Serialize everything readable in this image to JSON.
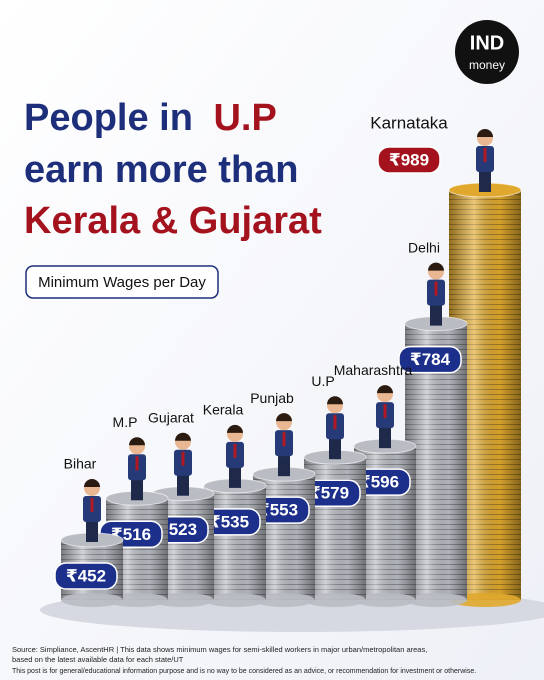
{
  "brand": [
    "IND",
    "money"
  ],
  "chart_data": {
    "type": "bar",
    "title_parts": [
      "People in",
      "U.P",
      "earn more than",
      "Kerala & Gujarat"
    ],
    "subtitle": "Minimum Wages per Day",
    "categories": [
      "Bihar",
      "M.P",
      "Gujarat",
      "Kerala",
      "Punjab",
      "U.P",
      "Maharashtra",
      "Delhi",
      "Karnataka"
    ],
    "values": [
      452,
      516,
      523,
      535,
      553,
      579,
      596,
      784,
      989
    ],
    "value_labels": [
      "₹452",
      "₹516",
      "₹523",
      "₹535",
      "₹553",
      "₹579",
      "₹596",
      "₹784",
      "₹989"
    ],
    "colors": [
      "#b9bcc3",
      "#b9bcc3",
      "#b9bcc3",
      "#b9bcc3",
      "#b9bcc3",
      "#b9bcc3",
      "#b9bcc3",
      "#b9bcc3",
      "#e0a92e"
    ],
    "label_colors": [
      "#1c2f8a",
      "#1c2f8a",
      "#1c2f8a",
      "#1c2f8a",
      "#1c2f8a",
      "#1c2f8a",
      "#1c2f8a",
      "#1c2f8a",
      "#a3121d"
    ]
  },
  "source": [
    "Source: Simpliance, AscentHR | This data shows minimum wages for semi-skilled workers in major urban/metropolitan areas,",
    "based on the latest available data for each state/UT",
    "This post is for general/educational information purpose and is no way to be considered as an advice, or recommendation for investment or otherwise."
  ]
}
